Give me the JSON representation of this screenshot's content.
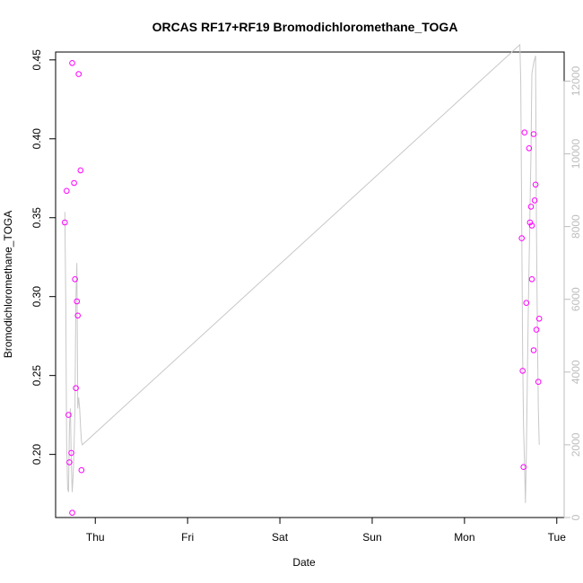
{
  "chart_data": {
    "type": "scatter",
    "title": "ORCAS RF17+RF19 Bromodichloromethane_TOGA",
    "xlabel": "Date",
    "ylabel": "Bromodichloromethane_TOGA",
    "x_unit": "days after Wed 00:00",
    "x_ticks": [
      {
        "x": 1,
        "label": "Thu"
      },
      {
        "x": 2,
        "label": "Fri"
      },
      {
        "x": 3,
        "label": "Sat"
      },
      {
        "x": 4,
        "label": "Sun"
      },
      {
        "x": 5,
        "label": "Mon"
      },
      {
        "x": 6,
        "label": "Tue"
      }
    ],
    "xlim": [
      0.57,
      6.08
    ],
    "ylim": [
      0.16,
      0.455
    ],
    "y_ticks": [
      0.2,
      0.25,
      0.3,
      0.35,
      0.4,
      0.45
    ],
    "y2lim": [
      0,
      12800
    ],
    "y2_ticks": [
      0,
      2000,
      4000,
      6000,
      8000,
      10000,
      12000
    ],
    "grid": false,
    "colors": {
      "points": "#ff00ff",
      "line": "#c8c8c8",
      "axis": "#000000",
      "right_axis": "#bdbdbd"
    },
    "series": [
      {
        "name": "",
        "type": "scatter",
        "axis": "left",
        "points": [
          [
            0.67,
            0.347
          ],
          [
            0.69,
            0.367
          ],
          [
            0.71,
            0.225
          ],
          [
            0.72,
            0.195
          ],
          [
            0.74,
            0.201
          ],
          [
            0.75,
            0.448
          ],
          [
            0.75,
            0.163
          ],
          [
            0.77,
            0.372
          ],
          [
            0.78,
            0.311
          ],
          [
            0.79,
            0.242
          ],
          [
            0.8,
            0.297
          ],
          [
            0.81,
            0.288
          ],
          [
            0.82,
            0.441
          ],
          [
            0.84,
            0.38
          ],
          [
            0.85,
            0.19
          ],
          [
            5.62,
            0.337
          ],
          [
            5.63,
            0.253
          ],
          [
            5.64,
            0.192
          ],
          [
            5.65,
            0.404
          ],
          [
            5.67,
            0.296
          ],
          [
            5.7,
            0.394
          ],
          [
            5.71,
            0.347
          ],
          [
            5.72,
            0.357
          ],
          [
            5.73,
            0.345
          ],
          [
            5.73,
            0.311
          ],
          [
            5.75,
            0.266
          ],
          [
            5.75,
            0.403
          ],
          [
            5.76,
            0.361
          ],
          [
            5.77,
            0.371
          ],
          [
            5.78,
            0.279
          ],
          [
            5.8,
            0.246
          ],
          [
            5.81,
            0.286
          ]
        ]
      },
      {
        "name": "",
        "type": "line",
        "axis": "right",
        "points": [
          [
            0.67,
            8400
          ],
          [
            0.68,
            6000
          ],
          [
            0.69,
            2000
          ],
          [
            0.7,
            800
          ],
          [
            0.71,
            700
          ],
          [
            0.72,
            2500
          ],
          [
            0.73,
            3000
          ],
          [
            0.74,
            1500
          ],
          [
            0.75,
            700
          ],
          [
            0.76,
            1200
          ],
          [
            0.77,
            2000
          ],
          [
            0.78,
            3000
          ],
          [
            0.79,
            6000
          ],
          [
            0.8,
            7000
          ],
          [
            0.81,
            3000
          ],
          [
            0.82,
            3300
          ],
          [
            0.83,
            3000
          ],
          [
            0.84,
            2500
          ],
          [
            0.85,
            2100
          ],
          [
            0.86,
            2000
          ],
          [
            5.6,
            13000
          ],
          [
            5.61,
            12000
          ],
          [
            5.62,
            8000
          ],
          [
            5.63,
            4500
          ],
          [
            5.64,
            2500
          ],
          [
            5.65,
            1500
          ],
          [
            5.66,
            400
          ],
          [
            5.67,
            1700
          ],
          [
            5.68,
            3500
          ],
          [
            5.69,
            5500
          ],
          [
            5.7,
            7000
          ],
          [
            5.72,
            10000
          ],
          [
            5.73,
            12200
          ],
          [
            5.75,
            12500
          ],
          [
            5.77,
            12700
          ],
          [
            5.78,
            8000
          ],
          [
            5.79,
            5000
          ],
          [
            5.8,
            3000
          ],
          [
            5.81,
            2000
          ]
        ]
      }
    ]
  }
}
